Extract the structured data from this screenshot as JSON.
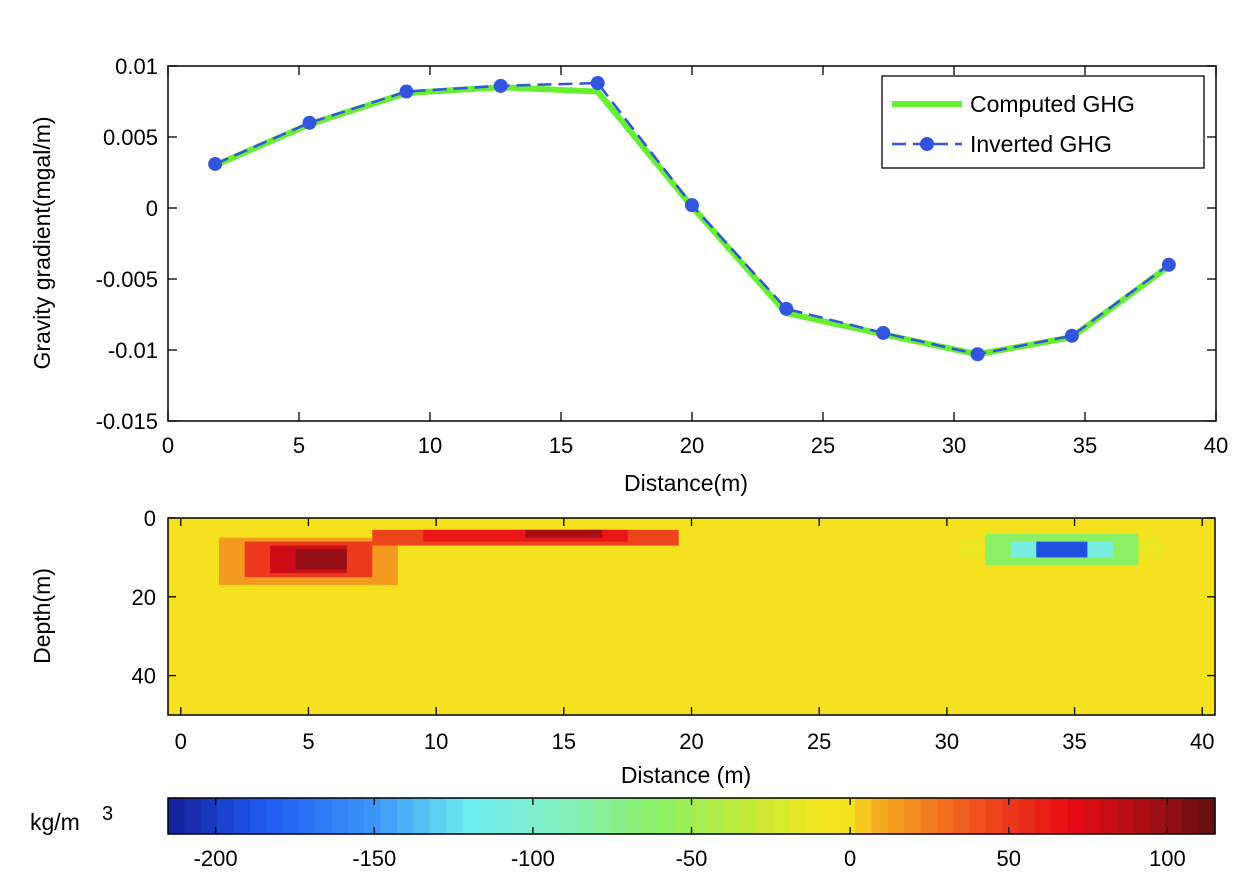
{
  "chart_data": [
    {
      "type": "line",
      "xlabel": "Distance(m)",
      "ylabel": "Gravity gradient(mgal/m)",
      "xlim": [
        0,
        40
      ],
      "ylim": [
        -0.015,
        0.01
      ],
      "xticks": [
        "0",
        "5",
        "10",
        "15",
        "20",
        "25",
        "30",
        "35",
        "40"
      ],
      "yticks": [
        "0.01",
        "0.005",
        "0",
        "-0.005",
        "-0.01",
        "-0.015"
      ],
      "legend_position": "top-right",
      "series": [
        {
          "name": "Computed GHG",
          "style": "solid",
          "color": "#66ee33",
          "x": [
            1.8,
            5.4,
            9.1,
            12.7,
            16.4,
            20.0,
            23.6,
            27.3,
            30.9,
            34.5,
            38.2
          ],
          "y": [
            0.003,
            0.0059,
            0.0081,
            0.0085,
            0.0082,
            0.0001,
            -0.0074,
            -0.0089,
            -0.0103,
            -0.0091,
            -0.0041
          ]
        },
        {
          "name": "Inverted GHG",
          "style": "dashed-markers",
          "color": "#3355dd",
          "x": [
            1.8,
            5.4,
            9.1,
            12.7,
            16.4,
            20.0,
            23.6,
            27.3,
            30.9,
            34.5,
            38.2
          ],
          "y": [
            0.0031,
            0.006,
            0.0082,
            0.0086,
            0.0088,
            0.0002,
            -0.0071,
            -0.0088,
            -0.0103,
            -0.009,
            -0.004
          ]
        }
      ]
    },
    {
      "type": "heatmap",
      "xlabel": "Distance (m)",
      "ylabel": "Depth(m)",
      "xlim": [
        -0.5,
        40.5
      ],
      "ylim": [
        0,
        50
      ],
      "xticks": [
        "0",
        "5",
        "10",
        "15",
        "20",
        "25",
        "30",
        "35",
        "40"
      ],
      "yticks": [
        "0",
        "20",
        "40"
      ],
      "background_value": 0,
      "anomalies": [
        {
          "x": [
            1.5,
            8.5
          ],
          "depth": [
            5,
            17
          ],
          "value": 15
        },
        {
          "x": [
            2.5,
            7.5
          ],
          "depth": [
            6,
            15
          ],
          "value": 50
        },
        {
          "x": [
            3.5,
            6.5
          ],
          "depth": [
            7,
            14
          ],
          "value": 80
        },
        {
          "x": [
            4.5,
            6.5
          ],
          "depth": [
            8,
            13
          ],
          "value": 100
        },
        {
          "x": [
            7.5,
            19.5
          ],
          "depth": [
            3,
            7
          ],
          "value": 45
        },
        {
          "x": [
            9.5,
            17.5
          ],
          "depth": [
            3,
            6
          ],
          "value": 65
        },
        {
          "x": [
            13.5,
            16.5
          ],
          "depth": [
            3,
            5
          ],
          "value": 95
        },
        {
          "x": [
            30.5,
            38.5
          ],
          "depth": [
            5,
            10
          ],
          "value": -12
        },
        {
          "x": [
            31.5,
            37.5
          ],
          "depth": [
            4,
            12
          ],
          "value": -60
        },
        {
          "x": [
            32.5,
            36.5
          ],
          "depth": [
            6,
            10
          ],
          "value": -110
        },
        {
          "x": [
            33.5,
            35.5
          ],
          "depth": [
            6,
            10
          ],
          "value": -190
        }
      ]
    },
    {
      "type": "colorbar",
      "unit_label": "kg/m",
      "unit_exponent": "3",
      "range": [
        -215,
        115
      ],
      "ticks": [
        "-200",
        "-150",
        "-100",
        "-50",
        "0",
        "50",
        "100"
      ],
      "tick_values": [
        -200,
        -150,
        -100,
        -50,
        0,
        50,
        100
      ]
    }
  ]
}
